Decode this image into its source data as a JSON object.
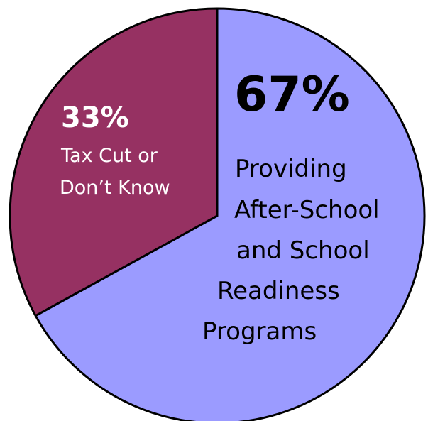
{
  "chart_data": {
    "type": "pie",
    "title": "",
    "slices": [
      {
        "percent_label": "67%",
        "value": 67,
        "label_lines": [
          "Providing",
          "After-School",
          "and School",
          "Readiness",
          "Programs"
        ],
        "color": "#9b9bff"
      },
      {
        "percent_label": "33%",
        "value": 33,
        "label_lines": [
          "Tax Cut or",
          "Don’t Know"
        ],
        "color": "#963162"
      }
    ]
  }
}
